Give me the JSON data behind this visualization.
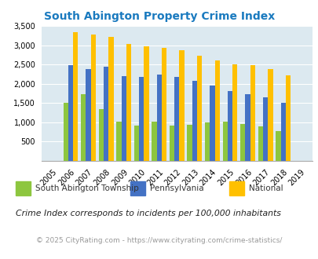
{
  "title": "South Abington Property Crime Index",
  "years": [
    2005,
    2006,
    2007,
    2008,
    2009,
    2010,
    2011,
    2012,
    2013,
    2014,
    2015,
    2016,
    2017,
    2018,
    2019
  ],
  "south_abington": [
    0,
    1500,
    1720,
    1340,
    1020,
    900,
    1020,
    900,
    920,
    1000,
    1020,
    950,
    880,
    770,
    0
  ],
  "pennsylvania": [
    0,
    2480,
    2370,
    2430,
    2200,
    2180,
    2230,
    2170,
    2080,
    1960,
    1800,
    1730,
    1640,
    1500,
    0
  ],
  "national": [
    0,
    3340,
    3270,
    3220,
    3040,
    2960,
    2920,
    2860,
    2730,
    2600,
    2510,
    2480,
    2380,
    2220,
    0
  ],
  "color_south": "#8DC63F",
  "color_pa": "#4472C4",
  "color_national": "#FFC000",
  "bg_color": "#dce9f0",
  "ylim": [
    0,
    3500
  ],
  "yticks": [
    0,
    500,
    1000,
    1500,
    2000,
    2500,
    3000,
    3500
  ],
  "legend_labels": [
    "South Abington Township",
    "Pennsylvania",
    "National"
  ],
  "footnote1": "Crime Index corresponds to incidents per 100,000 inhabitants",
  "footnote2": "© 2025 CityRating.com - https://www.cityrating.com/crime-statistics/",
  "title_color": "#1a7abf",
  "footnote1_color": "#222222",
  "footnote2_color": "#999999",
  "legend_text_color": "#333333"
}
